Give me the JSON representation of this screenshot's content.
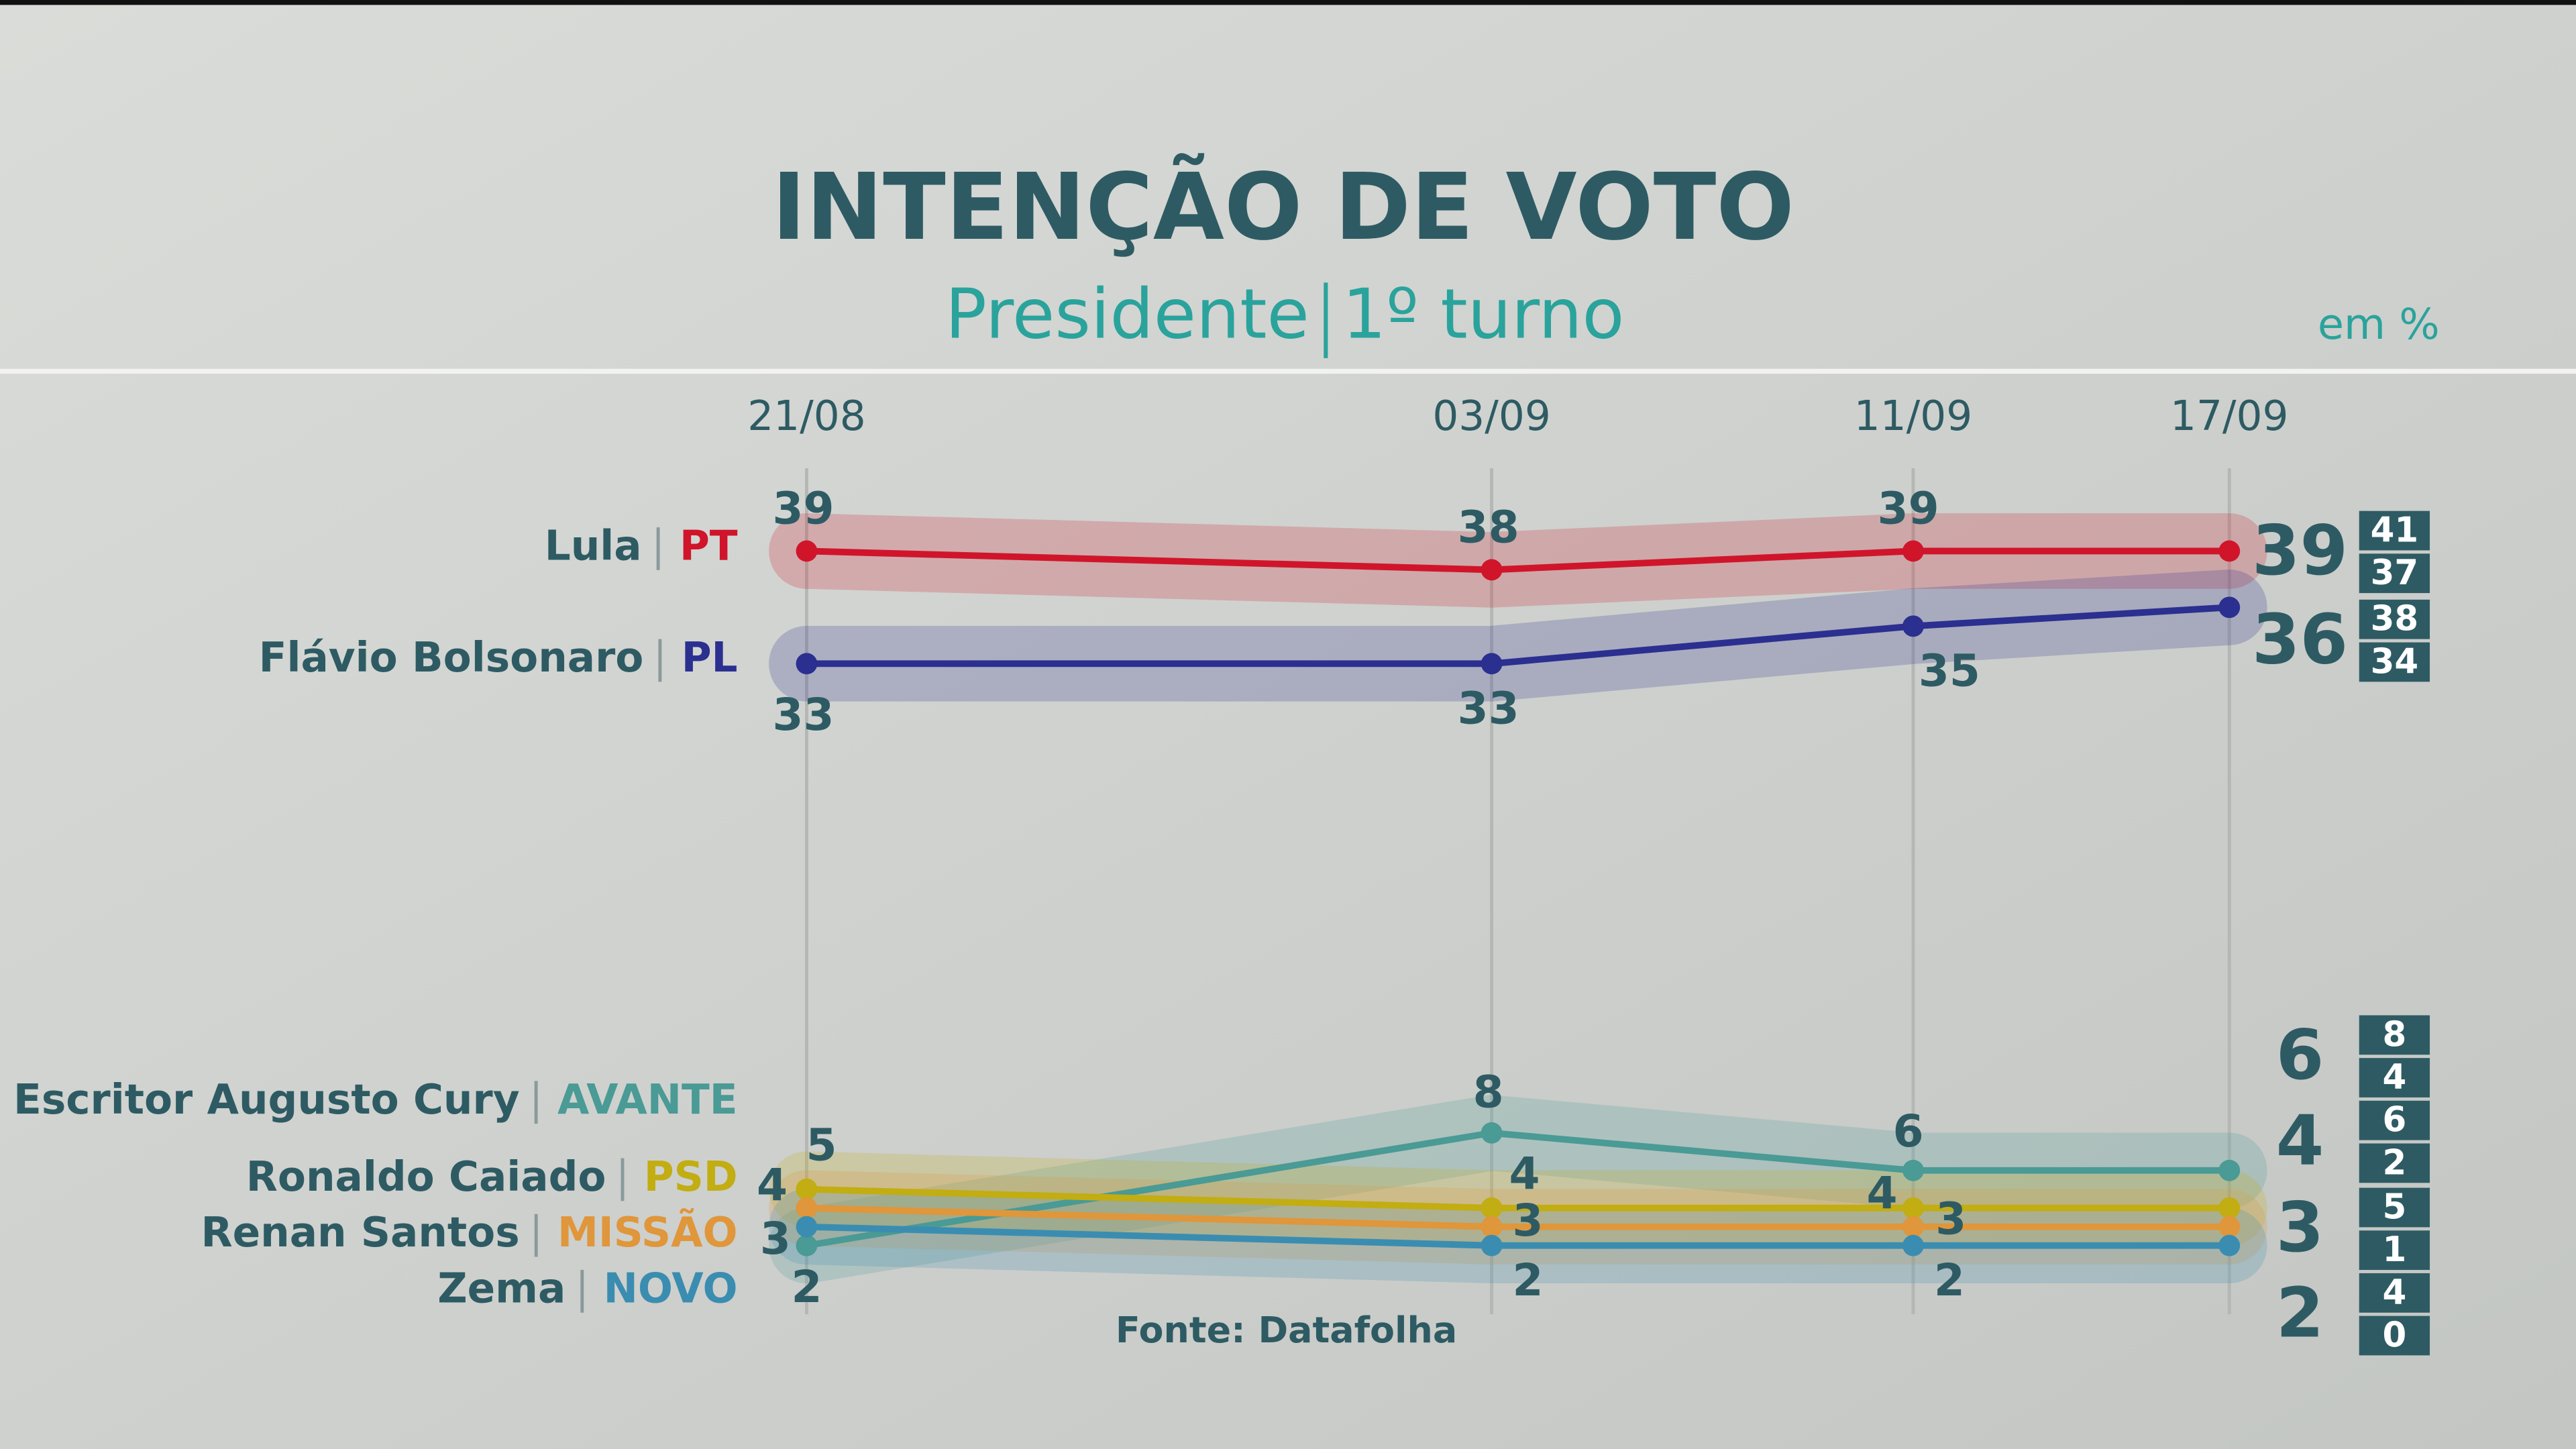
{
  "chart_data": {
    "type": "line",
    "title": "INTENÇÃO DE VOTO",
    "subtitle": "Presidente",
    "subtitle_2": "1º turno",
    "unit_note": "em %",
    "source": "Fonte: Datafolha",
    "x": [
      "21/08",
      "03/09",
      "11/09",
      "17/09"
    ],
    "ylim": [
      0,
      40
    ],
    "series": [
      {
        "name": "Lula",
        "party": "PT",
        "color": "#d0152b",
        "values": [
          39,
          38,
          39,
          39
        ],
        "range": [
          41,
          37
        ]
      },
      {
        "name": "Flávio Bolsonaro",
        "party": "PL",
        "color": "#2b2f8f",
        "values": [
          33,
          33,
          35,
          36
        ],
        "range": [
          38,
          34
        ]
      },
      {
        "name": "Escritor Augusto Cury",
        "party": "AVANTE",
        "color": "#4a9a95",
        "values": [
          2,
          8,
          6,
          6
        ],
        "range": [
          8,
          4
        ]
      },
      {
        "name": "Ronaldo Caiado",
        "party": "PSD",
        "color": "#c2ad12",
        "values": [
          5,
          4,
          4,
          4
        ],
        "range": [
          6,
          2
        ]
      },
      {
        "name": "Renan Santos",
        "party": "MISSÃO",
        "color": "#e0963a",
        "values": [
          4,
          3,
          3,
          3
        ],
        "range": [
          5,
          1
        ]
      },
      {
        "name": "Zema",
        "party": "NOVO",
        "color": "#3a8db0",
        "values": [
          3,
          2,
          2,
          2
        ],
        "range": [
          4,
          0
        ]
      }
    ]
  }
}
